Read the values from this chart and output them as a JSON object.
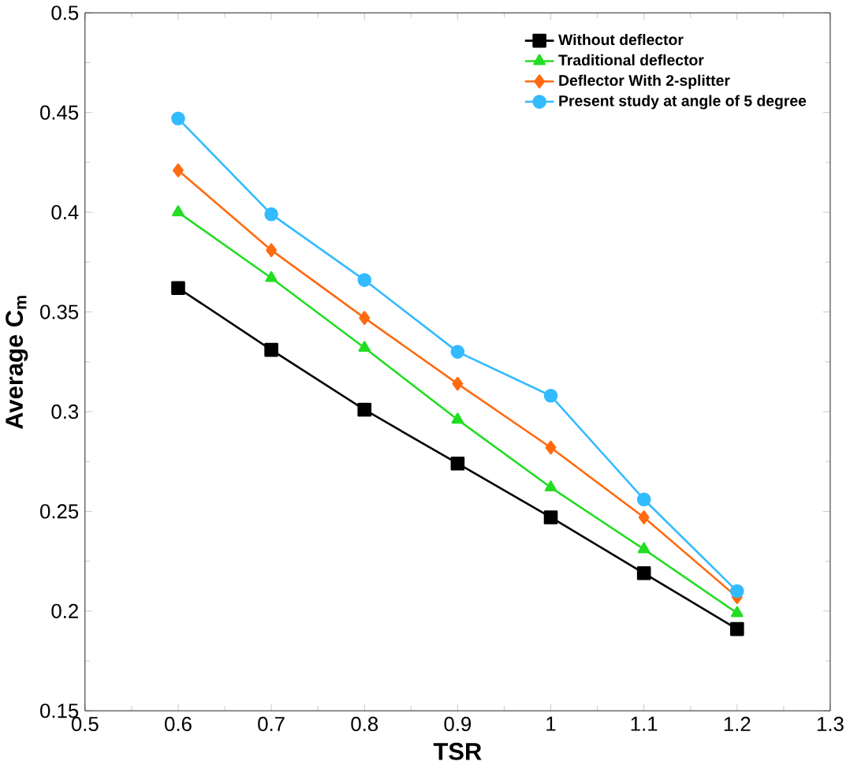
{
  "chart_data": {
    "type": "line",
    "xlabel": "TSR",
    "ylabel": "Average C$_{m}$",
    "x": [
      0.6,
      0.7,
      0.8,
      0.9,
      1.0,
      1.1,
      1.2
    ],
    "series": [
      {
        "name": "Without deflector",
        "color": "#000000",
        "marker": "square",
        "values": [
          0.362,
          0.331,
          0.301,
          0.274,
          0.247,
          0.219,
          0.191
        ]
      },
      {
        "name": "Traditional deflector",
        "color": "#22dd22",
        "marker": "triangle",
        "values": [
          0.4,
          0.367,
          0.332,
          0.296,
          0.262,
          0.231,
          0.199
        ]
      },
      {
        "name": "Deflector With 2-splitter",
        "color": "#ff6a10",
        "marker": "diamond",
        "values": [
          0.421,
          0.381,
          0.347,
          0.314,
          0.282,
          0.247,
          0.207
        ]
      },
      {
        "name": "Present study at angle of 5 degree",
        "color": "#33bbff",
        "marker": "circle",
        "values": [
          0.447,
          0.399,
          0.366,
          0.33,
          0.308,
          0.256,
          0.21
        ]
      }
    ],
    "xlim": [
      0.5,
      1.3
    ],
    "xticks": [
      0.5,
      0.6,
      0.7,
      0.8,
      0.9,
      1,
      1.1,
      1.2,
      1.3
    ],
    "ylim": [
      0.15,
      0.5
    ],
    "yticks": [
      0.15,
      0.2,
      0.25,
      0.3,
      0.35,
      0.4,
      0.45,
      0.5
    ],
    "legend": "top right",
    "grid": false,
    "line_style": "solid"
  }
}
